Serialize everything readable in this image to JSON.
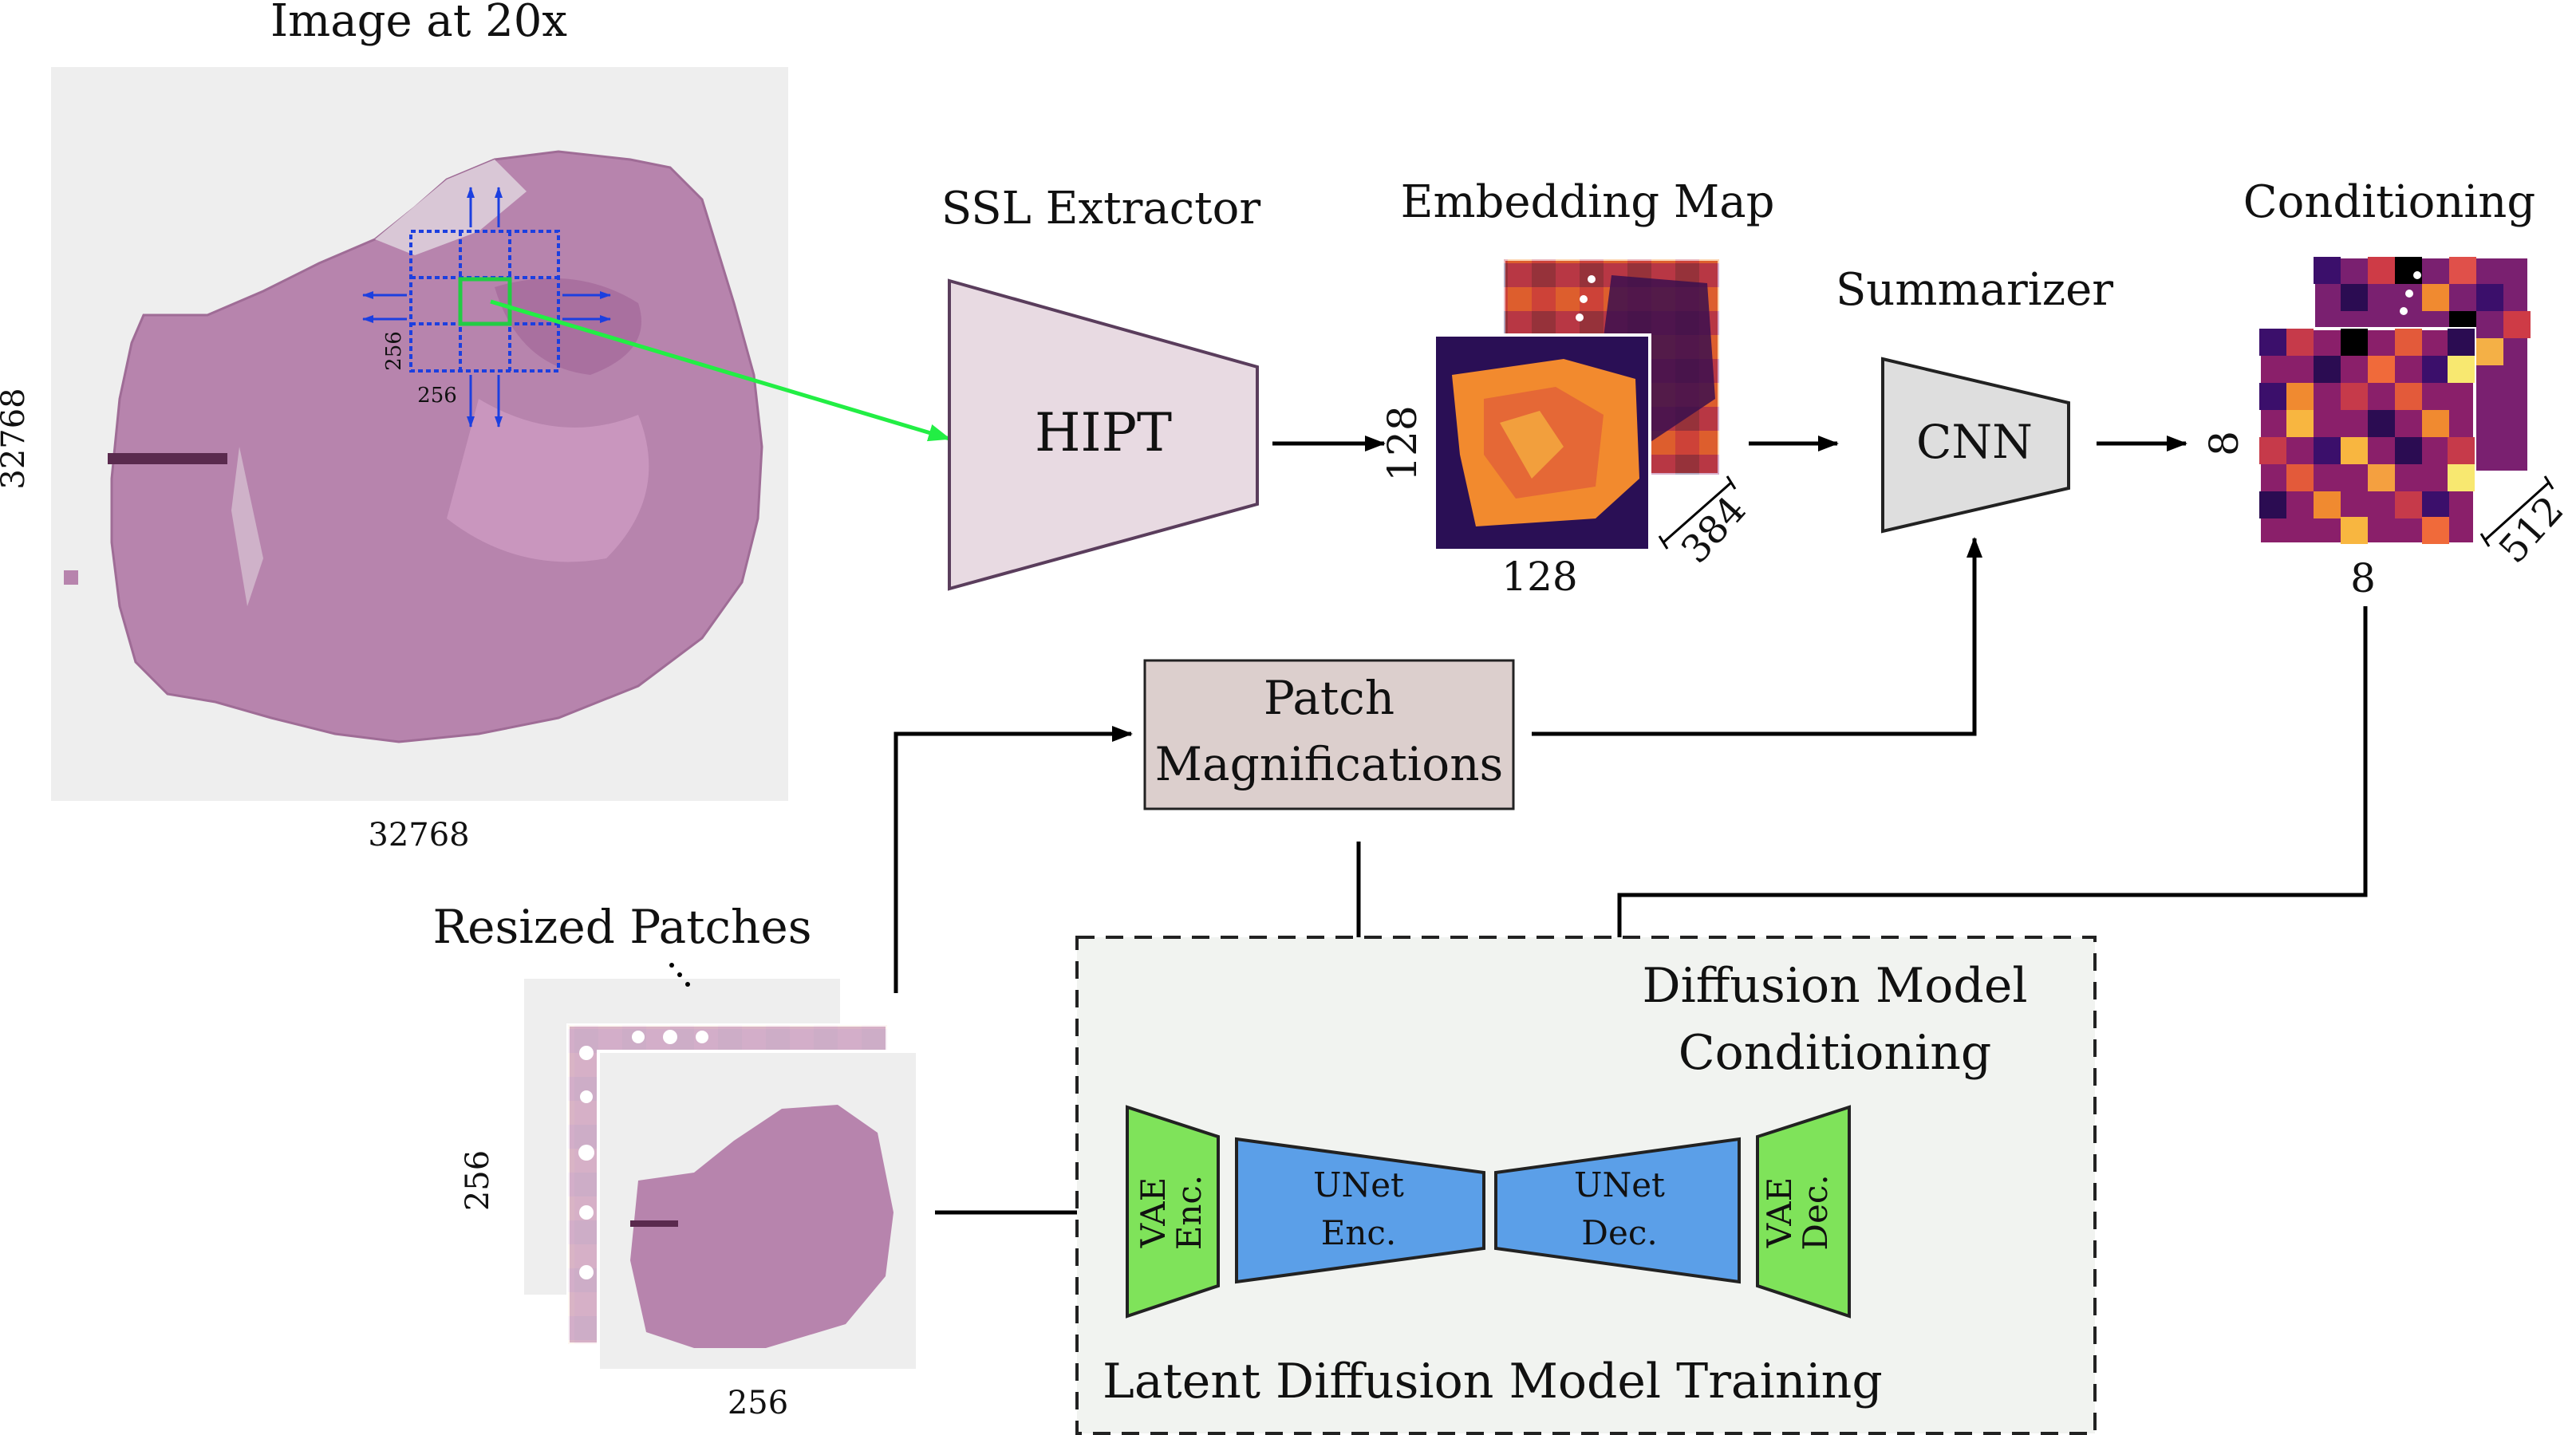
{
  "wsi": {
    "title": "Image at 20x",
    "side_label_vertical": "32768",
    "side_label_bottom": "32768",
    "patch_w_label": "256",
    "patch_h_label": "256"
  },
  "ssl": {
    "title": "SSL Extractor",
    "model_label": "HIPT"
  },
  "embedding": {
    "title": "Embedding Map",
    "height_label": "128",
    "width_label": "128",
    "depth_label": "384"
  },
  "summarizer": {
    "title": "Summarizer",
    "model_label": "CNN"
  },
  "conditioning": {
    "title": "Conditioning",
    "height_label": "8",
    "width_label": "8",
    "depth_label": "512"
  },
  "magnifications": {
    "line1": "Patch",
    "line2": "Magnifications"
  },
  "resized": {
    "title": "Resized Patches",
    "height_label": "256",
    "width_label": "256"
  },
  "ldm": {
    "title": "Latent Diffusion Model Training",
    "cond_line1": "Diffusion Model",
    "cond_line2": "Conditioning",
    "vae_enc_line1": "VAE",
    "vae_enc_line2": "Enc.",
    "unet_enc_line1": "UNet",
    "unet_enc_line2": "Enc.",
    "unet_dec_line1": "UNet",
    "unet_dec_line2": "Dec.",
    "vae_dec_line1": "VAE",
    "vae_dec_line2": "Dec."
  },
  "colors": {
    "tissue": "#b784ad",
    "hipt_fill": "#e8dae2",
    "hipt_stroke": "#5a3d5c",
    "cnn_fill": "#dedede",
    "mag_fill": "#dccfcd",
    "ldm_bg": "#f1f3f0",
    "vae_fill": "#7fe35a",
    "unet_fill": "#5b9fe8",
    "grid_blue": "#1c3fe0",
    "patch_green": "#22cc44"
  }
}
